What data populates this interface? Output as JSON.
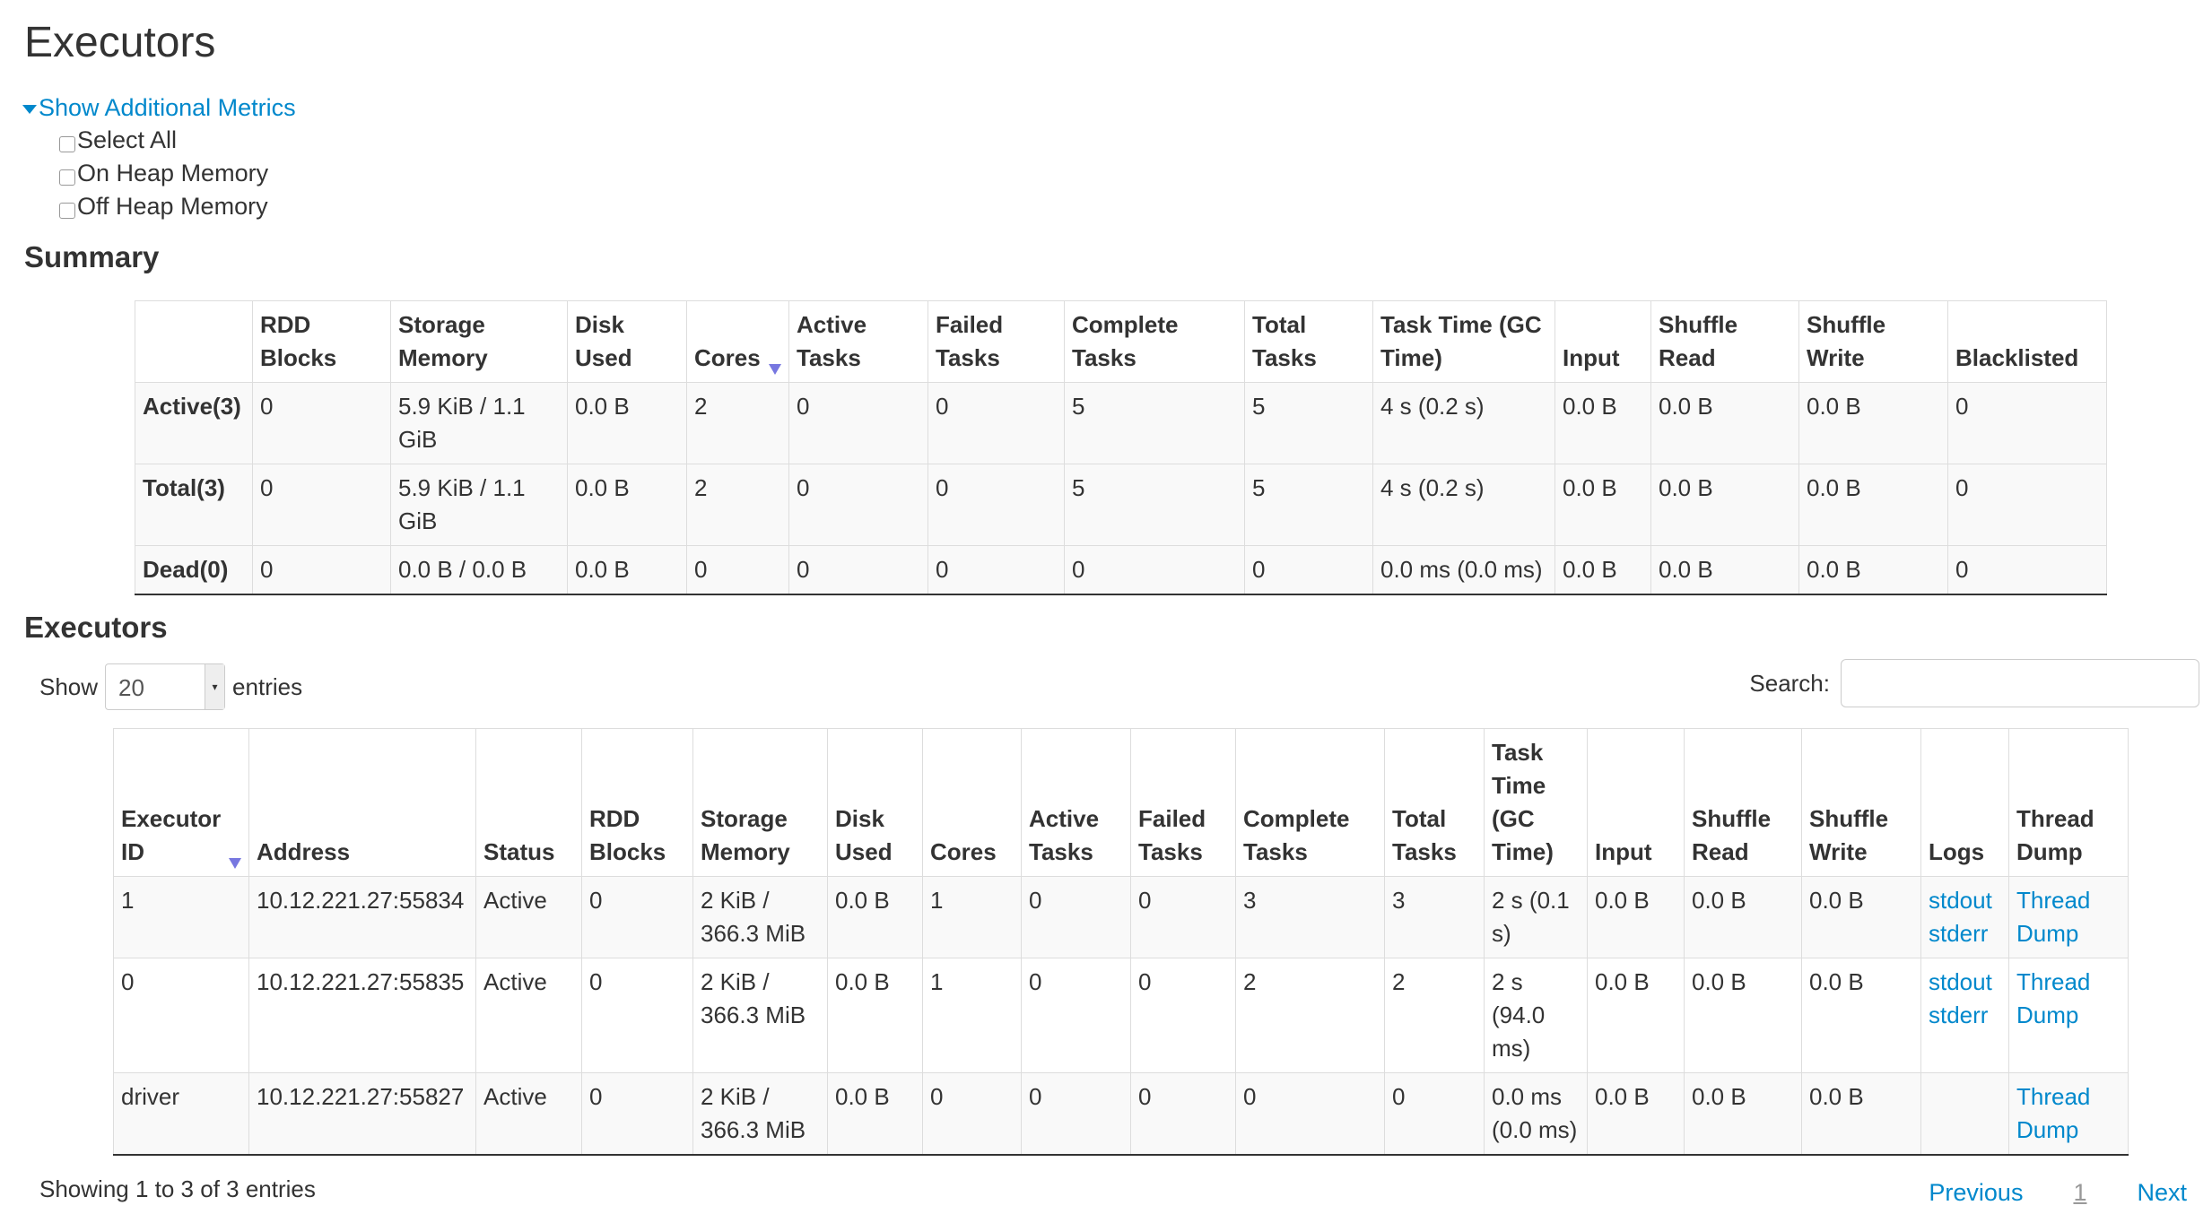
{
  "title": "Executors",
  "metrics": {
    "toggle": "Show Additional Metrics",
    "options": [
      "Select All",
      "On Heap Memory",
      "Off Heap Memory"
    ]
  },
  "summary": {
    "heading": "Summary",
    "columns": [
      "",
      "RDD Blocks",
      "Storage Memory",
      "Disk Used",
      "Cores",
      "Active Tasks",
      "Failed Tasks",
      "Complete Tasks",
      "Total Tasks",
      "Task Time (GC Time)",
      "Input",
      "Shuffle Read",
      "Shuffle Write",
      "Blacklisted"
    ],
    "sorted_column": "Cores",
    "rows": [
      [
        "Active(3)",
        "0",
        "5.9 KiB / 1.1 GiB",
        "0.0 B",
        "2",
        "0",
        "0",
        "5",
        "5",
        "4 s (0.2 s)",
        "0.0 B",
        "0.0 B",
        "0.0 B",
        "0"
      ],
      [
        "Total(3)",
        "0",
        "5.9 KiB / 1.1 GiB",
        "0.0 B",
        "2",
        "0",
        "0",
        "5",
        "5",
        "4 s (0.2 s)",
        "0.0 B",
        "0.0 B",
        "0.0 B",
        "0"
      ],
      [
        "Dead(0)",
        "0",
        "0.0 B / 0.0 B",
        "0.0 B",
        "0",
        "0",
        "0",
        "0",
        "0",
        "0.0 ms (0.0 ms)",
        "0.0 B",
        "0.0 B",
        "0.0 B",
        "0"
      ]
    ]
  },
  "executors": {
    "heading": "Executors",
    "show_label": "Show",
    "page_size": "20",
    "entries_label": "entries",
    "search_label": "Search:",
    "search_value": "",
    "columns": [
      "Executor ID",
      "Address",
      "Status",
      "RDD Blocks",
      "Storage Memory",
      "Disk Used",
      "Cores",
      "Active Tasks",
      "Failed Tasks",
      "Complete Tasks",
      "Total Tasks",
      "Task Time (GC Time)",
      "Input",
      "Shuffle Read",
      "Shuffle Write",
      "Logs",
      "Thread Dump"
    ],
    "sorted_column": "Executor ID",
    "rows": [
      {
        "cells": [
          "1",
          "10.12.221.27:55834",
          "Active",
          "0",
          "2 KiB / 366.3 MiB",
          "0.0 B",
          "1",
          "0",
          "0",
          "3",
          "3",
          "2 s (0.1 s)",
          "0.0 B",
          "0.0 B",
          "0.0 B"
        ],
        "logs": [
          "stdout",
          "stderr"
        ],
        "thread_dump": "Thread Dump"
      },
      {
        "cells": [
          "0",
          "10.12.221.27:55835",
          "Active",
          "0",
          "2 KiB / 366.3 MiB",
          "0.0 B",
          "1",
          "0",
          "0",
          "2",
          "2",
          "2 s (94.0 ms)",
          "0.0 B",
          "0.0 B",
          "0.0 B"
        ],
        "logs": [
          "stdout",
          "stderr"
        ],
        "thread_dump": "Thread Dump"
      },
      {
        "cells": [
          "driver",
          "10.12.221.27:55827",
          "Active",
          "0",
          "2 KiB / 366.3 MiB",
          "0.0 B",
          "0",
          "0",
          "0",
          "0",
          "0",
          "0.0 ms (0.0 ms)",
          "0.0 B",
          "0.0 B",
          "0.0 B"
        ],
        "logs": [],
        "thread_dump": "Thread Dump"
      }
    ],
    "info": "Showing 1 to 3 of 3 entries",
    "pagination": {
      "previous": "Previous",
      "current": "1",
      "next": "Next"
    }
  },
  "colors": {
    "link": "#0088cc",
    "sort_arrow": "#7777e0"
  }
}
